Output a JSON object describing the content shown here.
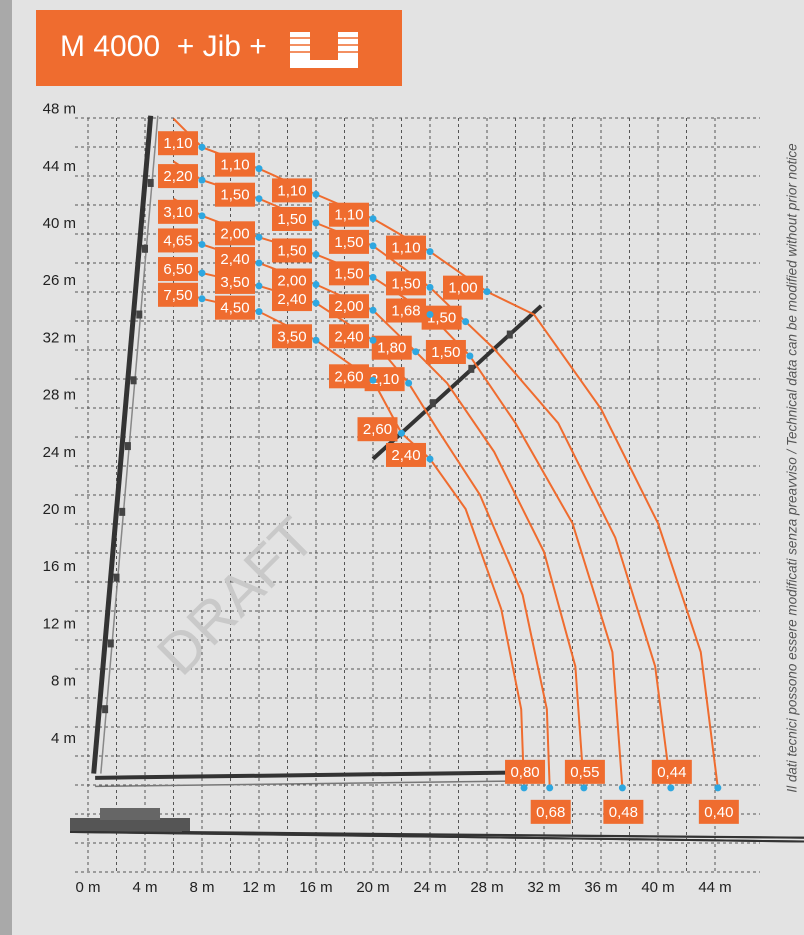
{
  "title": {
    "model": "M 4000",
    "suffix": "+ Jib +",
    "icon": "basket-icon"
  },
  "side_note": "Il dati tecnici possono essere modificati senza preavviso / Technical data can be modified without prior notice",
  "watermark": "DRAFT",
  "colors": {
    "accent": "#ef6c2f",
    "curve": "#ef6c2f",
    "dot": "#2ea7e0",
    "grid": "#555555",
    "crane": "#333333"
  },
  "chart_data": {
    "type": "line",
    "title": "M 4000 + Jib +",
    "grid": true,
    "x_ticks": [
      "0 m",
      "4 m",
      "8 m",
      "12 m",
      "16 m",
      "20 m",
      "24 m",
      "28 m",
      "32 m",
      "36 m",
      "40 m",
      "44 m"
    ],
    "y_ticks": [
      "48 m",
      "44 m",
      "40 m",
      "26 m",
      "32 m",
      "28 m",
      "24 m",
      "20 m",
      "16 m",
      "12 m",
      "8 m",
      "4 m"
    ],
    "xlim": [
      0,
      44
    ],
    "ylim_top_label": "48 m",
    "series": [
      {
        "loads": [
          "1,10",
          "1,10",
          "1,10",
          "1,10",
          "1,10",
          "1,00",
          "0,40"
        ],
        "points": [
          [
            6,
            47.3
          ],
          [
            8,
            45.3
          ],
          [
            12,
            43.8
          ],
          [
            16,
            42.0
          ],
          [
            20,
            40.3
          ],
          [
            24,
            38.0
          ],
          [
            28,
            35.2
          ],
          [
            31.3,
            33.6
          ],
          [
            36,
            27
          ],
          [
            40,
            19
          ],
          [
            43,
            10
          ],
          [
            44.2,
            0.5
          ]
        ]
      },
      {
        "loads": [
          "2,20",
          "1,50",
          "1,50",
          "1,50",
          "1,50",
          "1,50",
          "0,44"
        ],
        "points": [
          [
            6,
            44.3
          ],
          [
            8,
            43.0
          ],
          [
            12,
            41.7
          ],
          [
            16,
            40.0
          ],
          [
            20,
            38.4
          ],
          [
            24,
            35.5
          ],
          [
            26.5,
            33.1
          ],
          [
            28.5,
            31.2
          ],
          [
            33,
            26
          ],
          [
            37,
            18
          ],
          [
            39.8,
            9
          ],
          [
            40.9,
            0.5
          ]
        ]
      },
      {
        "loads": [
          "3,10",
          "2,00",
          "1,50",
          "1,50",
          "1,68",
          "1,50",
          "0,48"
        ],
        "points": [
          [
            6,
            41.7
          ],
          [
            8,
            40.5
          ],
          [
            12,
            39.0
          ],
          [
            16,
            37.8
          ],
          [
            20,
            36.2
          ],
          [
            24,
            33.6
          ],
          [
            26.8,
            30.7
          ],
          [
            30,
            26
          ],
          [
            34,
            19
          ],
          [
            36.8,
            10
          ],
          [
            37.5,
            0.5
          ]
        ]
      },
      {
        "loads": [
          "4,65",
          "2,40",
          "2,00",
          "2,00",
          "1,80",
          "0,55"
        ],
        "points": [
          [
            6,
            39.4
          ],
          [
            8,
            38.5
          ],
          [
            12,
            37.2
          ],
          [
            16,
            35.7
          ],
          [
            20,
            33.9
          ],
          [
            23,
            31.0
          ],
          [
            25.2,
            28.8
          ],
          [
            28.5,
            24
          ],
          [
            32,
            17
          ],
          [
            34.2,
            9
          ],
          [
            34.8,
            0.5
          ]
        ]
      },
      {
        "loads": [
          "6,50",
          "3,50",
          "2,40",
          "2,40",
          "2,10",
          "0,68"
        ],
        "points": [
          [
            6,
            37.1
          ],
          [
            8,
            36.5
          ],
          [
            12,
            35.6
          ],
          [
            16,
            34.4
          ],
          [
            20,
            31.8
          ],
          [
            22.5,
            28.8
          ],
          [
            24.5,
            25.6
          ],
          [
            27.5,
            21
          ],
          [
            30.5,
            14
          ],
          [
            32.2,
            6
          ],
          [
            32.4,
            0.5
          ]
        ]
      },
      {
        "loads": [
          "7,50",
          "4,50",
          "3,50",
          "2,60",
          "2,60",
          "2,40",
          "0,80"
        ],
        "points": [
          [
            6,
            35.4
          ],
          [
            8,
            34.7
          ],
          [
            12,
            33.8
          ],
          [
            16,
            31.8
          ],
          [
            20,
            29.0
          ],
          [
            22,
            25.3
          ],
          [
            24,
            23.5
          ],
          [
            26.5,
            20
          ],
          [
            29,
            13
          ],
          [
            30.4,
            6
          ],
          [
            30.6,
            0.5
          ]
        ]
      }
    ],
    "end_loads": [
      "0,80",
      "0,68",
      "0,55",
      "0,48",
      "0,44",
      "0,40"
    ]
  }
}
